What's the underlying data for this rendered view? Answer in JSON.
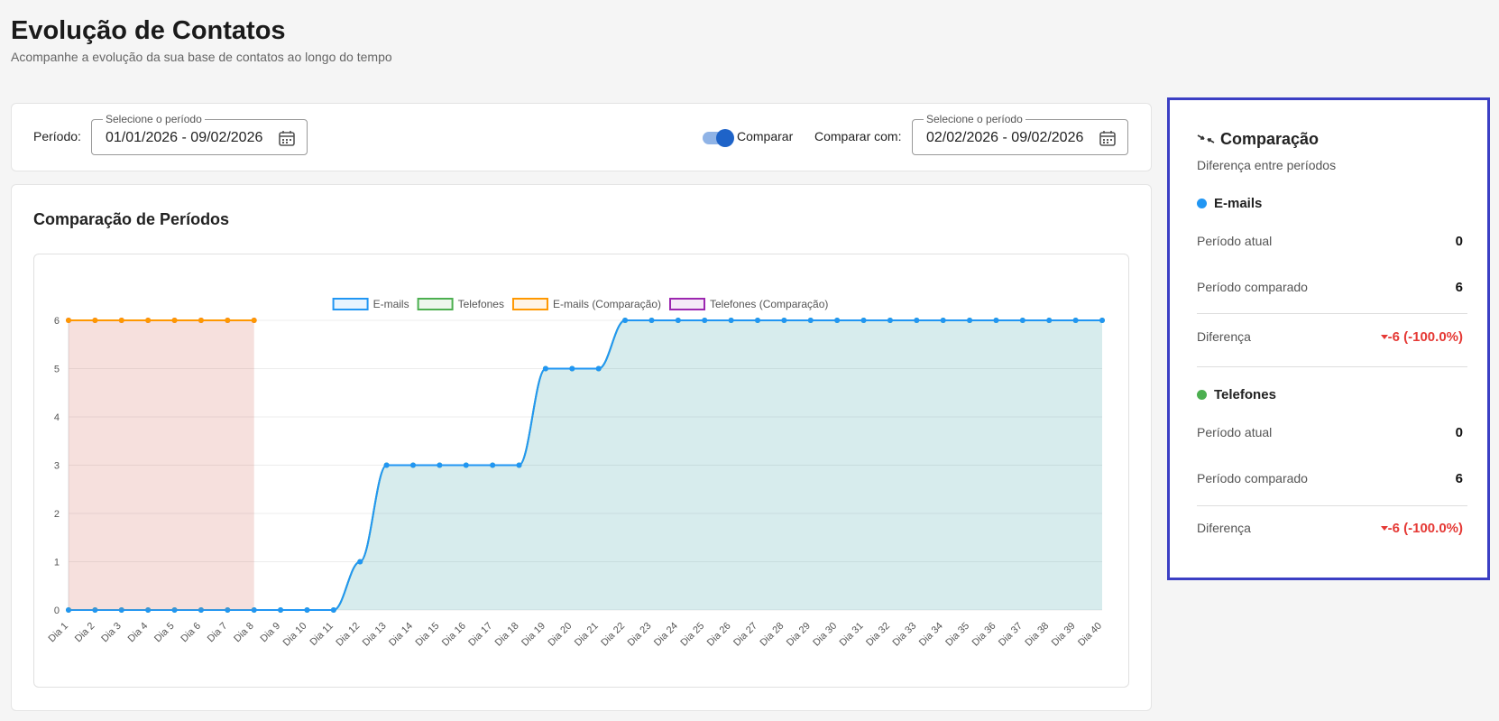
{
  "header": {
    "title": "Evolução de Contatos",
    "subtitle": "Acompanhe a evolução da sua base de contatos ao longo do tempo"
  },
  "filters": {
    "period_label": "Período:",
    "period_field_label": "Selecione o período",
    "period_value": "01/01/2026 - 09/02/2026",
    "compare_toggle": "Comparar",
    "compare_with_label": "Comparar com:",
    "compare_field_label": "Selecione o período",
    "compare_value": "02/02/2026 - 09/02/2026"
  },
  "chart_data": {
    "type": "line",
    "title": "Comparação de Períodos",
    "categories": [
      "Dia 1",
      "Dia 2",
      "Dia 3",
      "Dia 4",
      "Dia 5",
      "Dia 6",
      "Dia 7",
      "Dia 8",
      "Dia 9",
      "Dia 10",
      "Dia 11",
      "Dia 12",
      "Dia 13",
      "Dia 14",
      "Dia 15",
      "Dia 16",
      "Dia 17",
      "Dia 18",
      "Dia 19",
      "Dia 20",
      "Dia 21",
      "Dia 22",
      "Dia 23",
      "Dia 24",
      "Dia 25",
      "Dia 26",
      "Dia 27",
      "Dia 28",
      "Dia 29",
      "Dia 30",
      "Dia 31",
      "Dia 32",
      "Dia 33",
      "Dia 34",
      "Dia 35",
      "Dia 36",
      "Dia 37",
      "Dia 38",
      "Dia 39",
      "Dia 40"
    ],
    "series": [
      {
        "name": "E-mails",
        "color": "#2196f3",
        "values": [
          0,
          0,
          0,
          0,
          0,
          0,
          0,
          0,
          0,
          0,
          0,
          1,
          3,
          3,
          3,
          3,
          3,
          3,
          5,
          5,
          5,
          6,
          6,
          6,
          6,
          6,
          6,
          6,
          6,
          6,
          6,
          6,
          6,
          6,
          6,
          6,
          6,
          6,
          6,
          6
        ]
      },
      {
        "name": "Telefones",
        "color": "#4caf50",
        "values": [
          0,
          0,
          0,
          0,
          0,
          0,
          0,
          0,
          0,
          0,
          0,
          1,
          3,
          3,
          3,
          3,
          3,
          3,
          5,
          5,
          5,
          6,
          6,
          6,
          6,
          6,
          6,
          6,
          6,
          6,
          6,
          6,
          6,
          6,
          6,
          6,
          6,
          6,
          6,
          6
        ]
      },
      {
        "name": "E-mails (Comparação)",
        "color": "#ff9800",
        "values": [
          6,
          6,
          6,
          6,
          6,
          6,
          6,
          6,
          null,
          null,
          null,
          null,
          null,
          null,
          null,
          null,
          null,
          null,
          null,
          null,
          null,
          null,
          null,
          null,
          null,
          null,
          null,
          null,
          null,
          null,
          null,
          null,
          null,
          null,
          null,
          null,
          null,
          null,
          null,
          null
        ]
      },
      {
        "name": "Telefones (Comparação)",
        "color": "#9c27b0",
        "values": [
          6,
          6,
          6,
          6,
          6,
          6,
          6,
          6,
          null,
          null,
          null,
          null,
          null,
          null,
          null,
          null,
          null,
          null,
          null,
          null,
          null,
          null,
          null,
          null,
          null,
          null,
          null,
          null,
          null,
          null,
          null,
          null,
          null,
          null,
          null,
          null,
          null,
          null,
          null,
          null
        ]
      }
    ],
    "ylim": [
      0,
      6
    ],
    "yticks": [
      0,
      1,
      2,
      3,
      4,
      5,
      6
    ],
    "grid": true,
    "legend": "top"
  },
  "comparison": {
    "title": "Comparação",
    "subtitle": "Diferença entre períodos",
    "groups": [
      {
        "name": "E-mails",
        "color": "#2196f3",
        "rows": [
          {
            "label": "Período atual",
            "value": 0
          },
          {
            "label": "Período comparado",
            "value": 6
          },
          {
            "label": "Diferença",
            "value": "-6 (-100.0%)"
          }
        ]
      },
      {
        "name": "Telefones",
        "color": "#4caf50",
        "rows": [
          {
            "label": "Período atual",
            "value": 0
          },
          {
            "label": "Período comparado",
            "value": 6
          },
          {
            "label": "Diferença",
            "value": "-6 (-100.0%)"
          }
        ]
      }
    ]
  }
}
